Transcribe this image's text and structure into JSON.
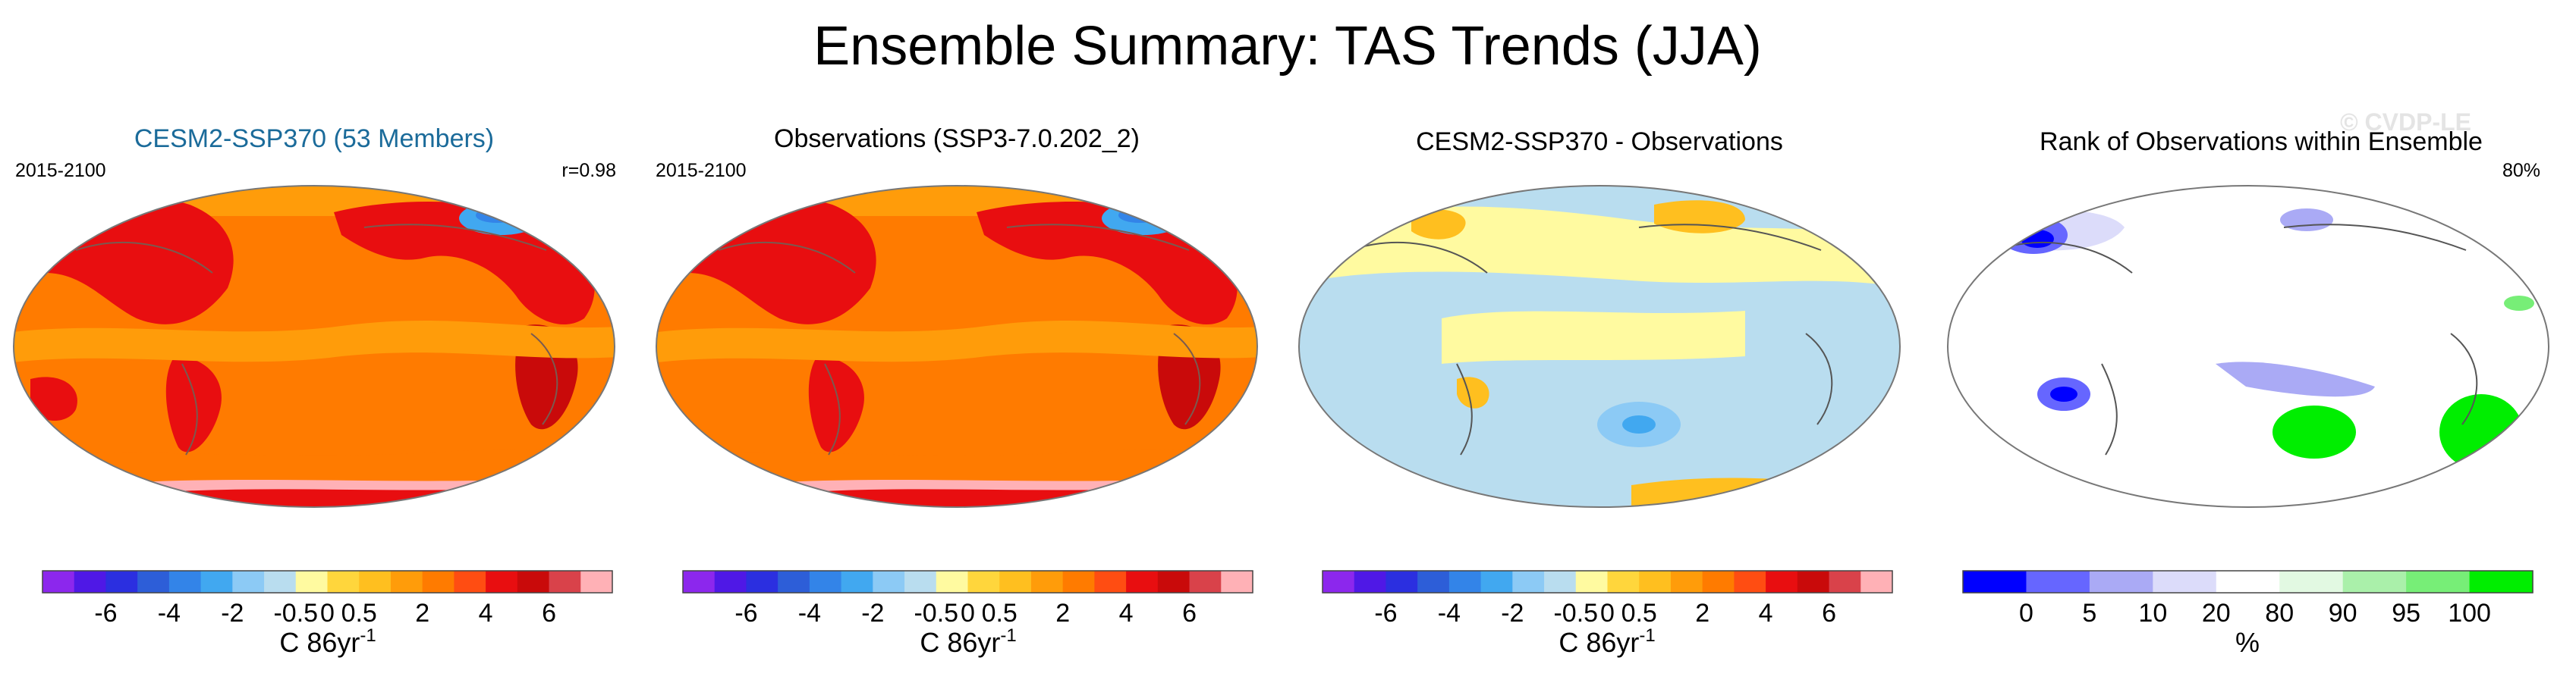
{
  "figure": {
    "title": "Ensemble Summary: TAS Trends (JJA)",
    "watermark": "© CVDP-LE"
  },
  "panels": [
    {
      "title": "CESM2-SSP370 (53 Members)",
      "title_color": "#1b6b9a",
      "left_label": "2015-2100",
      "right_label": "r=0.98",
      "map_style": "warm_model"
    },
    {
      "title": "Observations (SSP3-7.0.202_2)",
      "title_color": "#000000",
      "left_label": "2015-2100",
      "right_label": "",
      "map_style": "warm_obs"
    },
    {
      "title": "CESM2-SSP370 - Observations",
      "title_color": "#000000",
      "left_label": "",
      "right_label": "",
      "map_style": "difference"
    },
    {
      "title": "Rank of Observations within Ensemble",
      "title_color": "#000000",
      "left_label": "",
      "right_label": "80%",
      "map_style": "rank"
    }
  ],
  "colorbars": [
    {
      "colors": [
        "#8c27ed",
        "#4f18e6",
        "#2b2fe0",
        "#2d5ed8",
        "#3384e8",
        "#41a8f0",
        "#8ccaf5",
        "#b9ddef",
        "#fffaa0",
        "#ffd63c",
        "#ffbf1f",
        "#ff9c0a",
        "#ff7b00",
        "#ff4d12",
        "#e80e10",
        "#c90a0a",
        "#d9424a",
        "#ffb1b6"
      ],
      "ticks": [
        "-6",
        "-4",
        "-2",
        "-0.5",
        "0",
        "0.5",
        "2",
        "4",
        "6"
      ],
      "tick_boundaries": [
        2,
        4,
        6,
        8,
        9,
        10,
        12,
        14,
        16
      ],
      "label_main": "C 86yr",
      "label_sup": "-1"
    },
    {
      "colors": [
        "#8c27ed",
        "#4f18e6",
        "#2b2fe0",
        "#2d5ed8",
        "#3384e8",
        "#41a8f0",
        "#8ccaf5",
        "#b9ddef",
        "#fffaa0",
        "#ffd63c",
        "#ffbf1f",
        "#ff9c0a",
        "#ff7b00",
        "#ff4d12",
        "#e80e10",
        "#c90a0a",
        "#d9424a",
        "#ffb1b6"
      ],
      "ticks": [
        "-6",
        "-4",
        "-2",
        "-0.5",
        "0",
        "0.5",
        "2",
        "4",
        "6"
      ],
      "tick_boundaries": [
        2,
        4,
        6,
        8,
        9,
        10,
        12,
        14,
        16
      ],
      "label_main": "C 86yr",
      "label_sup": "-1"
    },
    {
      "colors": [
        "#8c27ed",
        "#4f18e6",
        "#2b2fe0",
        "#2d5ed8",
        "#3384e8",
        "#41a8f0",
        "#8ccaf5",
        "#b9ddef",
        "#fffaa0",
        "#ffd63c",
        "#ffbf1f",
        "#ff9c0a",
        "#ff7b00",
        "#ff4d12",
        "#e80e10",
        "#c90a0a",
        "#d9424a",
        "#ffb1b6"
      ],
      "ticks": [
        "-6",
        "-4",
        "-2",
        "-0.5",
        "0",
        "0.5",
        "2",
        "4",
        "6"
      ],
      "tick_boundaries": [
        2,
        4,
        6,
        8,
        9,
        10,
        12,
        14,
        16
      ],
      "label_main": "C 86yr",
      "label_sup": "-1"
    },
    {
      "colors": [
        "#0000ff",
        "#6666ff",
        "#aaaaf5",
        "#dcdcfa",
        "#ffffff",
        "#e2f9e2",
        "#aaf0aa",
        "#77ee77",
        "#00ee00"
      ],
      "ticks": [
        "0",
        "5",
        "10",
        "20",
        "80",
        "90",
        "95",
        "100"
      ],
      "tick_boundaries": [
        1,
        2,
        3,
        4,
        5,
        6,
        7,
        8
      ],
      "label_main": "%",
      "label_sup": ""
    }
  ],
  "chart_data": [
    {
      "type": "map",
      "title": "CESM2-SSP370 (53 Members)",
      "variable": "TAS trend (JJA)",
      "period": "2015-2100",
      "pattern_correlation": 0.98,
      "units": "C 86yr^-1",
      "contour_levels": [
        -6,
        -5,
        -4,
        -3,
        -2,
        -1,
        -0.5,
        -0.25,
        0,
        0.25,
        0.5,
        1,
        2,
        3,
        4,
        5,
        6
      ]
    },
    {
      "type": "map",
      "title": "Observations (SSP3-7.0.202_2)",
      "variable": "TAS trend (JJA)",
      "period": "2015-2100",
      "units": "C 86yr^-1",
      "contour_levels": [
        -6,
        -5,
        -4,
        -3,
        -2,
        -1,
        -0.5,
        -0.25,
        0,
        0.25,
        0.5,
        1,
        2,
        3,
        4,
        5,
        6
      ]
    },
    {
      "type": "map",
      "title": "CESM2-SSP370 - Observations",
      "variable": "TAS trend difference (JJA)",
      "units": "C 86yr^-1",
      "contour_levels": [
        -6,
        -5,
        -4,
        -3,
        -2,
        -1,
        -0.5,
        -0.25,
        0,
        0.25,
        0.5,
        1,
        2,
        3,
        4,
        5,
        6
      ]
    },
    {
      "type": "map",
      "title": "Rank of Observations within Ensemble",
      "variable": "rank percentile",
      "area_within_10_90": "80%",
      "units": "%",
      "contour_levels": [
        0,
        5,
        10,
        20,
        80,
        90,
        95,
        100
      ]
    }
  ]
}
